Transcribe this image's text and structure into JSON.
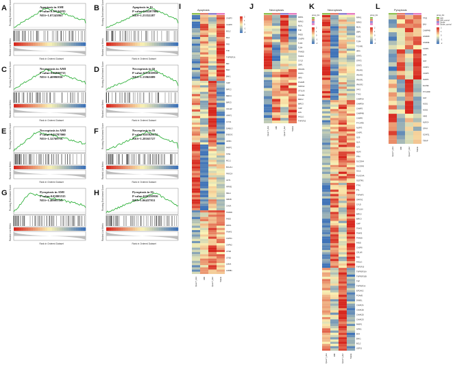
{
  "panels_gsea": [
    {
      "label": "A",
      "title": "Apoptosis in AMI",
      "pval": "P value:0.19144193",
      "nes": "NES=1.07243865"
    },
    {
      "label": "B",
      "title": "Apoptosis in IS",
      "pval": "P value:0.04207868",
      "nes": "NES=1.23352287"
    },
    {
      "label": "C",
      "title": "Necroptosis in AMI",
      "pval": "P value:0.00840733",
      "nes": "NES=1.40990830"
    },
    {
      "label": "D",
      "title": "Necroptosis in IS",
      "pval": "P value:0.25010936",
      "nes": "NES=1.13963089"
    },
    {
      "label": "E",
      "title": "Necroptosis in AMI",
      "pval": "P value:0.03787000",
      "nes": "NES=1.32769716"
    },
    {
      "label": "F",
      "title": "Necroptosis in IS",
      "pval": "P value:0.05929133",
      "nes": "NES=1.28165727"
    },
    {
      "label": "G",
      "title": "Pyroptosis in AMI",
      "pval": "P value:0.03805535",
      "nes": "NES=1.40095318"
    },
    {
      "label": "H",
      "title": "Pyroptosis in IS",
      "pval": "P value:0.06250936",
      "nes": "NES=1.06437931"
    }
  ],
  "gsea_axes": {
    "es_label": "Running Enrichment Score",
    "rank_label": "Ranked List Metric",
    "x_label": "Rank in Ordered Dataset"
  },
  "heatmaps": [
    {
      "label": "I",
      "title": "Apoptosis",
      "columns": [
        "QuanT_dex",
        "AMI",
        "QuanT_dec",
        "Stable"
      ],
      "genes": [
        "CASP3",
        "CASP8",
        "BCL2",
        "BAX",
        "FAS",
        "TNF",
        "TNFRSF1A",
        "BID",
        "BAD",
        "BAK1",
        "XIAP",
        "BIRC2",
        "BIRC3",
        "BIRC5",
        "CFLAR",
        "APAF1",
        "CYCS",
        "DIABLO",
        "ENDOG",
        "AIFM1",
        "PARP1",
        "TP53",
        "MCL1",
        "BCL2L1",
        "PIK3CA",
        "AKT1",
        "NFKB1",
        "RELA",
        "IKBKB",
        "CHUK",
        "TRADD",
        "FADD",
        "RIPK1",
        "TRAF2",
        "CAPN1",
        "CAPN2",
        "CTSB",
        "CTSD",
        "LMNA",
        "LMNB1"
      ],
      "legend": [
        "2",
        "1",
        "0",
        "-1",
        "-2"
      ]
    },
    {
      "label": "J",
      "title": "Necroptosis",
      "columns": [
        "QuanT_dex",
        "AMI",
        "QuanT_dec",
        "Stable"
      ],
      "genes": [
        "RIPK1",
        "RIPK3",
        "MLKL",
        "TNF",
        "FADD",
        "CASP8",
        "TLR3",
        "TLR4",
        "TRADD",
        "TRAF2",
        "CYLD",
        "ZBP1",
        "IFNGR1",
        "STAT1",
        "IRF9",
        "PGAM5",
        "SPATA2",
        "OTULIN",
        "TICAM1",
        "BIRC2",
        "BIRC3",
        "XIAP",
        "FAS",
        "FASLG",
        "TNFSF10"
      ],
      "legend": [
        "2",
        "1",
        "0",
        "-1",
        "-2"
      ],
      "group_key": "group_list"
    },
    {
      "label": "K",
      "title": "Necroptosis",
      "columns": [
        "QuanT_dex",
        "AMI",
        "QuanT_dec",
        "Stable"
      ],
      "genes": [
        "RIPK1",
        "RIPK3",
        "MLKL",
        "ZBP1",
        "TLR3",
        "TLR4",
        "TICAM1",
        "IRF9",
        "STAT1",
        "STAT2",
        "STAT3",
        "IFNAR1",
        "IFNAR2",
        "IFNGR1",
        "IFNGR2",
        "JAK1",
        "TYK2",
        "CHMP1A",
        "CHMP2A",
        "CHMP3",
        "CHMP4B",
        "CHMP6",
        "PYCARD",
        "NLRP3",
        "CASP1",
        "IL1B",
        "IL1A",
        "IL33",
        "H2AX",
        "PPIA",
        "SLC25A4",
        "SLC25A5",
        "GLUL",
        "PLA2G4A",
        "SQSTM1",
        "FTH1",
        "FTL",
        "TNFAIP3",
        "SPATA2",
        "CYLD",
        "OTULIN",
        "BIRC2",
        "BIRC3",
        "XIAP",
        "TRAF2",
        "TRAF5",
        "TRADD",
        "FADD",
        "CASP8",
        "CFLAR",
        "FAS",
        "FASLG",
        "TNFSF10",
        "TNFRSF10A",
        "TNFRSF10B",
        "TNF",
        "TNFRSF1A",
        "EIF2AK2",
        "PGAM5",
        "DNM1L",
        "CAMK2A",
        "CAMK2B",
        "CAMK2D",
        "CAMK2G",
        "PARP1",
        "AIFM1",
        "BAX",
        "BAK1",
        "BCL2",
        "USP21"
      ],
      "legend": [
        "2",
        "1",
        "0",
        "-1",
        "-2"
      ],
      "group_key": "group_list"
    },
    {
      "label": "L",
      "title": "Pyroptosis",
      "columns": [
        "QuanT_dex",
        "AMI",
        "QuanT_dec",
        "Stable"
      ],
      "genes": [
        "TP53",
        "BAX",
        "CHMP4B",
        "GSDMD",
        "GSDME",
        "CASP1",
        "IL1B",
        "IL18",
        "CASP4",
        "CASP5",
        "NLRP3",
        "ELANE",
        "PYCARD",
        "IL18",
        "NOD1",
        "NOD2",
        "AIM2",
        "NLRC4",
        "GPX4",
        "SCAF11",
        "TIRAP"
      ],
      "legend": [
        "2",
        "1",
        "0",
        "-1",
        "-2"
      ],
      "group_key": "group_list",
      "groups": [
        "AMI",
        "AMI_control",
        "Stroke",
        "Stroke_control"
      ]
    }
  ],
  "colors": {
    "green_curve": "#2fb13a",
    "heat_high": "#d7281f",
    "heat_mid": "#fbf3b4",
    "heat_low": "#3f73b8",
    "group_colors": [
      "#8fbf4f",
      "#e07a6a",
      "#8f7fd0",
      "#e67cc0"
    ]
  }
}
